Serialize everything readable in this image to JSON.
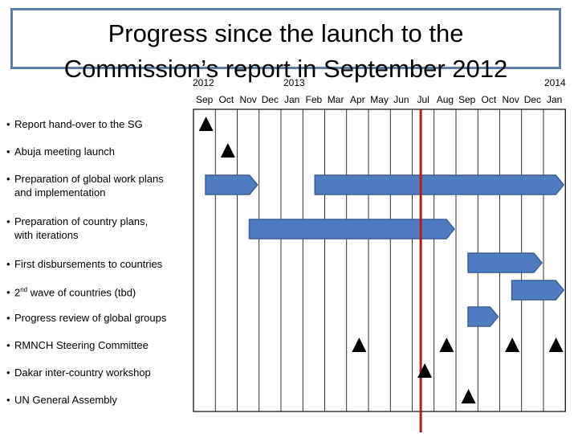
{
  "title": {
    "line1": "Progress since the launch to the",
    "line2": "Commission’s report in September 2012"
  },
  "timeline": {
    "years": [
      "2012",
      "2013",
      "2014"
    ],
    "months": [
      "Sep",
      "Oct",
      "Nov",
      "Dec",
      "Jan",
      "Feb",
      "Mar",
      "Apr",
      "May",
      "Jun",
      "Jul",
      "Aug",
      "Sep",
      "Oct",
      "Nov",
      "Dec",
      "Jan"
    ],
    "start": "2012-09",
    "end": "2014-01",
    "current_marker": "2013-07"
  },
  "colors": {
    "bar_fill": "#4f7cc0",
    "bar_stroke": "#3b5e94",
    "marker": "#000000",
    "current_line": "#b01c1c",
    "grid": "#000000",
    "title_border": "#5b7fa6"
  },
  "tasks": [
    {
      "bullet": "•",
      "lines": [
        "Report hand-over to the SG"
      ],
      "milestones": [
        "2012-09"
      ],
      "bars": []
    },
    {
      "bullet": "•",
      "lines": [
        "Abuja meeting launch"
      ],
      "milestones": [
        "2012-10"
      ],
      "bars": []
    },
    {
      "bullet": "•",
      "lines": [
        "Preparation of global work plans",
        "and implementation"
      ],
      "milestones": [],
      "bars": [
        [
          "2012-09",
          "2012-11"
        ],
        [
          "2013-02",
          "2014-01"
        ]
      ]
    },
    {
      "bullet": "•",
      "lines": [
        "Preparation of country plans,",
        "with iterations"
      ],
      "milestones": [],
      "bars": [
        [
          "2012-11",
          "2013-08"
        ]
      ]
    },
    {
      "bullet": "•",
      "lines": [
        "First disbursements to countries"
      ],
      "milestones": [],
      "bars": [
        [
          "2013-09",
          "2013-12"
        ]
      ]
    },
    {
      "bullet": "•",
      "lines": [
        "2",
        "nd",
        " wave of countries (tbd)"
      ],
      "milestones": [],
      "bars": [
        [
          "2013-11",
          "2014-01"
        ]
      ]
    },
    {
      "bullet": "•",
      "lines": [
        "Progress review of global groups"
      ],
      "milestones": [],
      "bars": [
        [
          "2013-09",
          "2013-10"
        ]
      ]
    },
    {
      "bullet": "•",
      "lines": [
        "RMNCH Steering Committee"
      ],
      "milestones": [
        "2013-04",
        "2013-08",
        "2013-11",
        "2014-01"
      ],
      "bars": []
    },
    {
      "bullet": "•",
      "lines": [
        "Dakar inter-country workshop"
      ],
      "milestones": [
        "2013-07"
      ],
      "bars": []
    },
    {
      "bullet": "•",
      "lines": [
        "UN General Assembly"
      ],
      "milestones": [
        "2013-09"
      ],
      "bars": []
    }
  ]
}
